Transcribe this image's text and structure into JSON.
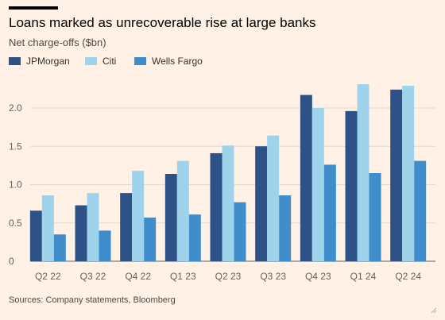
{
  "title": "Loans marked as unrecoverable rise at large banks",
  "subtitle": "Net charge-offs ($bn)",
  "source": "Sources: Company statements, Bloomberg",
  "colors": {
    "background": "#fff1e5",
    "gridline": "#e3d9cf",
    "JPMorgan": "#2e5288",
    "Citi": "#9fd3eb",
    "Wells Fargo": "#3f8ecb"
  },
  "chart_data": {
    "type": "bar",
    "title": "Loans marked as unrecoverable rise at large banks",
    "subtitle": "Net charge-offs ($bn)",
    "xlabel": "",
    "ylabel": "",
    "categories": [
      "Q2 22",
      "Q3 22",
      "Q4 22",
      "Q1 23",
      "Q2 23",
      "Q3 23",
      "Q4 23",
      "Q1 24",
      "Q2 24"
    ],
    "series": [
      {
        "name": "JPMorgan",
        "values": [
          0.66,
          0.73,
          0.89,
          1.14,
          1.41,
          1.5,
          2.17,
          1.96,
          2.24
        ]
      },
      {
        "name": "Citi",
        "values": [
          0.86,
          0.89,
          1.18,
          1.31,
          1.51,
          1.64,
          2.0,
          2.31,
          2.29
        ]
      },
      {
        "name": "Wells Fargo",
        "values": [
          0.35,
          0.4,
          0.57,
          0.61,
          0.77,
          0.86,
          1.26,
          1.15,
          1.31
        ]
      }
    ],
    "ylim": [
      0,
      2.3
    ],
    "yticks": [
      "0",
      "0.5",
      "1.0",
      "1.5",
      "2.0"
    ],
    "ytick_values": [
      0,
      0.5,
      1.0,
      1.5,
      2.0
    ],
    "grid": true,
    "legend_position": "top-left"
  }
}
